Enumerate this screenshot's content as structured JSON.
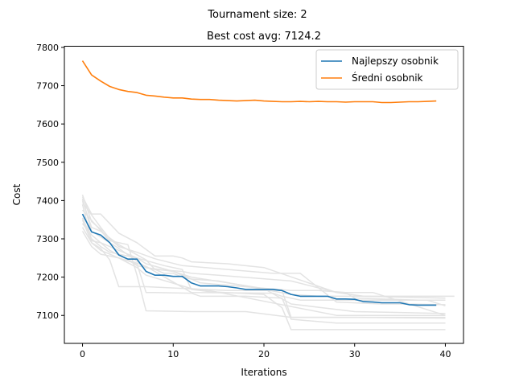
{
  "chart_data": {
    "type": "line",
    "suptitle": "Tournament size: 2",
    "title": "Best cost avg: 7124.2",
    "xlabel": "Iterations",
    "ylabel": "Cost",
    "xlim": [
      -2,
      42
    ],
    "ylim": [
      7027,
      7803
    ],
    "xticks": [
      0,
      10,
      20,
      30,
      40
    ],
    "yticks": [
      7100,
      7200,
      7300,
      7400,
      7500,
      7600,
      7700,
      7800
    ],
    "grid": false,
    "legend_position": "top-right",
    "colors": {
      "best": "#1f77b4",
      "mean": "#ff7f0e",
      "runs": "#e3e3e3"
    },
    "series": [
      {
        "name": "Najlepszy osobnik",
        "color": "#1f77b4",
        "x": [
          0,
          1,
          2,
          3,
          4,
          5,
          6,
          7,
          8,
          9,
          10,
          11,
          12,
          13,
          14,
          15,
          16,
          17,
          18,
          19,
          20,
          21,
          22,
          23,
          24,
          25,
          26,
          27,
          28,
          29,
          30,
          31,
          32,
          33,
          34,
          35,
          36,
          37,
          38,
          39
        ],
        "values": [
          7365,
          7318,
          7310,
          7290,
          7258,
          7247,
          7247,
          7215,
          7205,
          7205,
          7202,
          7202,
          7185,
          7177,
          7177,
          7177,
          7175,
          7172,
          7168,
          7168,
          7168,
          7168,
          7165,
          7155,
          7150,
          7150,
          7150,
          7150,
          7143,
          7143,
          7142,
          7136,
          7135,
          7133,
          7133,
          7133,
          7128,
          7127,
          7127,
          7127
        ]
      },
      {
        "name": "Średni osobnik",
        "color": "#ff7f0e",
        "x": [
          0,
          1,
          2,
          3,
          4,
          5,
          6,
          7,
          8,
          9,
          10,
          11,
          12,
          13,
          14,
          15,
          16,
          17,
          18,
          19,
          20,
          21,
          22,
          23,
          24,
          25,
          26,
          27,
          28,
          29,
          30,
          31,
          32,
          33,
          34,
          35,
          36,
          37,
          38,
          39
        ],
        "values": [
          7765,
          7728,
          7712,
          7698,
          7690,
          7685,
          7682,
          7675,
          7673,
          7670,
          7668,
          7668,
          7665,
          7664,
          7664,
          7662,
          7661,
          7660,
          7661,
          7662,
          7660,
          7659,
          7658,
          7658,
          7659,
          7658,
          7659,
          7658,
          7658,
          7657,
          7658,
          7658,
          7658,
          7656,
          7656,
          7657,
          7658,
          7658,
          7659,
          7660
        ]
      }
    ],
    "background_runs": [
      {
        "x": [
          0,
          1,
          2,
          4,
          6,
          8,
          10,
          11,
          12,
          16,
          20,
          28,
          32,
          40
        ],
        "values": [
          7410,
          7365,
          7365,
          7315,
          7290,
          7255,
          7255,
          7250,
          7240,
          7235,
          7225,
          7160,
          7160,
          7100
        ]
      },
      {
        "x": [
          0,
          1,
          2,
          4,
          7,
          8,
          9,
          10,
          11,
          12,
          15,
          23,
          26,
          28,
          30,
          41
        ],
        "values": [
          7400,
          7330,
          7320,
          7285,
          7245,
          7220,
          7210,
          7210,
          7200,
          7195,
          7190,
          7155,
          7150,
          7150,
          7150,
          7150
        ]
      },
      {
        "x": [
          0,
          1,
          2,
          3,
          5,
          7,
          12,
          21,
          22,
          24,
          30,
          38,
          40
        ],
        "values": [
          7390,
          7295,
          7290,
          7270,
          7245,
          7228,
          7160,
          7158,
          7150,
          7140,
          7140,
          7140,
          7125
        ]
      },
      {
        "x": [
          0,
          1,
          2,
          4,
          7,
          10,
          13,
          23,
          26,
          29,
          30,
          37,
          40
        ],
        "values": [
          7405,
          7320,
          7305,
          7275,
          7225,
          7215,
          7185,
          7165,
          7165,
          7160,
          7145,
          7140,
          7140
        ]
      },
      {
        "x": [
          0,
          1,
          2,
          3,
          4,
          6,
          8,
          11,
          12,
          15,
          23,
          28,
          31,
          40
        ],
        "values": [
          7415,
          7345,
          7325,
          7290,
          7260,
          7230,
          7220,
          7215,
          7210,
          7205,
          7190,
          7160,
          7150,
          7145
        ]
      },
      {
        "x": [
          0,
          2,
          3,
          4,
          6,
          8,
          11,
          16,
          21,
          24,
          28,
          33,
          35,
          40
        ],
        "values": [
          7395,
          7330,
          7300,
          7280,
          7265,
          7248,
          7230,
          7220,
          7210,
          7210,
          7135,
          7130,
          7130,
          7128
        ]
      },
      {
        "x": [
          0,
          1,
          2,
          3,
          4,
          5,
          7,
          16,
          22,
          23,
          24,
          40
        ],
        "values": [
          7350,
          7290,
          7275,
          7245,
          7175,
          7175,
          7175,
          7165,
          7165,
          7095,
          7095,
          7095
        ]
      },
      {
        "x": [
          0,
          1,
          2,
          4,
          6,
          7,
          12,
          14,
          28,
          30,
          40
        ],
        "values": [
          7330,
          7290,
          7270,
          7250,
          7225,
          7205,
          7170,
          7165,
          7100,
          7100,
          7100
        ]
      },
      {
        "x": [
          0,
          1,
          2,
          3,
          4,
          6,
          7,
          8,
          12,
          13,
          18,
          22,
          23,
          28,
          40
        ],
        "values": [
          7320,
          7280,
          7260,
          7255,
          7250,
          7235,
          7160,
          7160,
          7158,
          7150,
          7150,
          7145,
          7090,
          7080,
          7080
        ]
      },
      {
        "x": [
          0,
          3,
          5,
          6,
          7,
          12,
          18,
          23,
          24,
          30,
          40
        ],
        "values": [
          7375,
          7295,
          7285,
          7205,
          7112,
          7110,
          7110,
          7095,
          7095,
          7095,
          7093
        ]
      },
      {
        "x": [
          0,
          1,
          2,
          3,
          5,
          6,
          7,
          10,
          12,
          20,
          23,
          30,
          34,
          40
        ],
        "values": [
          7355,
          7300,
          7280,
          7265,
          7255,
          7250,
          7235,
          7215,
          7200,
          7170,
          7130,
          7110,
          7108,
          7105
        ]
      },
      {
        "x": [
          0,
          1,
          2,
          4,
          6,
          9,
          11,
          12,
          14,
          20,
          22,
          23,
          40
        ],
        "values": [
          7340,
          7310,
          7290,
          7270,
          7250,
          7230,
          7220,
          7168,
          7162,
          7155,
          7120,
          7063,
          7063
        ]
      }
    ]
  }
}
